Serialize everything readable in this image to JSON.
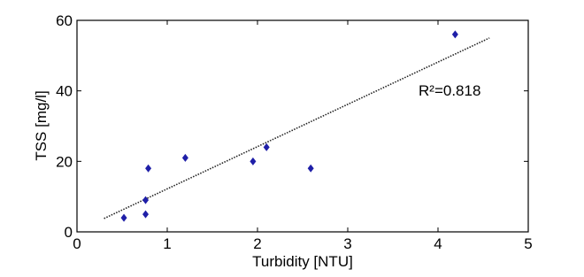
{
  "chart_data": {
    "type": "scatter",
    "xlabel": "Turbidity [NTU]",
    "ylabel": "TSS [mg/l]",
    "annotation": "R²=0.818",
    "series": [
      {
        "color": "#1f1fa8",
        "x": [
          0.52,
          0.76,
          0.76,
          0.79,
          1.2,
          1.95,
          2.1,
          2.59,
          4.19
        ],
        "values": [
          4,
          5,
          9,
          18,
          21,
          20,
          24,
          18,
          56
        ]
      }
    ],
    "trendline": {
      "x": [
        0.3,
        4.57
      ],
      "values": [
        3.8,
        55
      ]
    },
    "xlim": [
      0,
      5
    ],
    "xticks": [
      0,
      1,
      2,
      3,
      4,
      5
    ],
    "ylim": [
      0,
      60
    ],
    "yticks": [
      0,
      20,
      40,
      60
    ]
  }
}
